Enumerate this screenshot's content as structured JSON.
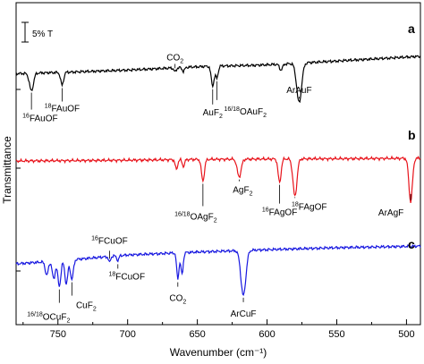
{
  "chart_data": {
    "type": "line",
    "xlabel": "Wavenumber (cm⁻¹)",
    "ylabel": "Transmittance",
    "xlim": [
      780,
      490
    ],
    "x_ticks": [
      750,
      700,
      650,
      600,
      550,
      500
    ],
    "scale_bar": "5% T",
    "series": [
      {
        "panel": "a",
        "color": "#000000",
        "baseline": [
          [
            780,
            0.44
          ],
          [
            740,
            0.52
          ],
          [
            700,
            0.62
          ],
          [
            670,
            0.72
          ],
          [
            640,
            0.82
          ],
          [
            610,
            0.86
          ],
          [
            590,
            0.92
          ],
          [
            570,
            1.0
          ],
          [
            540,
            1.12
          ],
          [
            520,
            1.2
          ],
          [
            500,
            1.28
          ],
          [
            490,
            1.32
          ]
        ],
        "bands": [
          [
            769,
            0.9,
            2
          ],
          [
            747,
            0.65,
            1.5
          ],
          [
            666,
            0.2,
            1.2
          ],
          [
            660,
            0.2,
            1.2
          ],
          [
            639,
            1.0,
            1.5
          ],
          [
            636,
            0.6,
            1.3
          ],
          [
            577,
            2.0,
            2.5
          ],
          [
            590,
            0.3,
            1.5
          ]
        ]
      },
      {
        "panel": "b",
        "color": "#e8141c",
        "baseline": [
          [
            780,
            0.0
          ],
          [
            700,
            0.04
          ],
          [
            650,
            0.08
          ],
          [
            600,
            0.1
          ],
          [
            540,
            0.12
          ],
          [
            490,
            0.14
          ]
        ],
        "bands": [
          [
            665,
            0.5,
            1.2
          ],
          [
            660,
            0.35,
            1.2
          ],
          [
            646,
            1.1,
            1.5
          ],
          [
            620,
            0.9,
            2
          ],
          [
            591,
            1.2,
            1.5
          ],
          [
            580,
            1.9,
            2
          ],
          [
            497,
            2.2,
            1.8
          ]
        ]
      },
      {
        "panel": "c",
        "color": "#1818e0",
        "baseline": [
          [
            780,
            0.0
          ],
          [
            750,
            0.15
          ],
          [
            700,
            0.45
          ],
          [
            650,
            0.6
          ],
          [
            600,
            0.72
          ],
          [
            550,
            0.82
          ],
          [
            490,
            0.9
          ]
        ],
        "bands": [
          [
            758,
            0.7,
            1.5
          ],
          [
            753,
            0.9,
            1.5
          ],
          [
            749,
            1.3,
            1.5
          ],
          [
            744,
            1.2,
            1.5
          ],
          [
            740,
            1.0,
            1.5
          ],
          [
            713,
            0.3,
            1
          ],
          [
            707,
            0.25,
            1
          ],
          [
            664,
            1.3,
            1.2
          ],
          [
            661,
            1.1,
            1.2
          ],
          [
            617,
            2.3,
            2.5
          ]
        ]
      }
    ],
    "annotations": {
      "a": [
        {
          "text": "CO",
          "sub": "2",
          "sup": "",
          "x": 666
        },
        {
          "text": "ArAuF",
          "sub": "",
          "sup": "",
          "x": 577
        },
        {
          "text": "AuF",
          "sub": "2",
          "sup": "",
          "x": 639
        },
        {
          "text": "OAuF",
          "sub": "2",
          "sup": "16/18",
          "x": 636
        },
        {
          "text": "FAu",
          "sub": "",
          "sup": "18",
          "tail": "OF",
          "x": 747
        },
        {
          "text": "FAu",
          "sub": "",
          "sup": "16",
          "tail": "OF",
          "x": 769
        }
      ],
      "b": [
        {
          "text": "OAgF",
          "sub": "2",
          "sup": "16/18",
          "x": 646
        },
        {
          "text": "AgF",
          "sub": "2",
          "sup": "",
          "x": 620
        },
        {
          "text": "FAg",
          "sub": "",
          "sup": "18",
          "tail": "OF",
          "x": 580
        },
        {
          "text": "FAg",
          "sub": "",
          "sup": "16",
          "tail": "OF",
          "x": 591
        },
        {
          "text": "ArAgF",
          "sub": "",
          "sup": "",
          "x": 497
        }
      ],
      "c": [
        {
          "text": "FCu",
          "sub": "",
          "sup": "16",
          "tail": "OF",
          "x": 713
        },
        {
          "text": "FCu",
          "sub": "",
          "sup": "18",
          "tail": "OF",
          "x": 707
        },
        {
          "text": "OCuF",
          "sub": "2",
          "sup": "16/18",
          "x": 749
        },
        {
          "text": "CuF",
          "sub": "2",
          "sup": "",
          "x": 740
        },
        {
          "text": "CO",
          "sub": "2",
          "sup": "",
          "x": 664
        },
        {
          "text": "ArCuF",
          "sub": "",
          "sup": "",
          "x": 617
        }
      ]
    }
  }
}
